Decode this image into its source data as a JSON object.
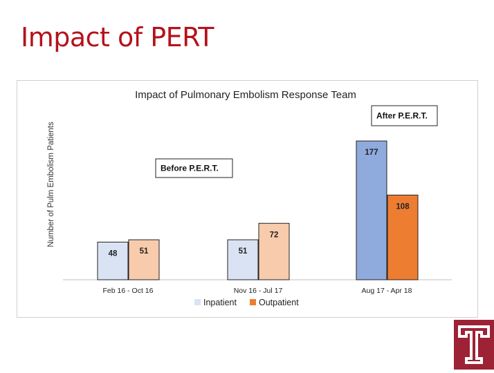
{
  "slide": {
    "title": "Impact of PERT"
  },
  "colors": {
    "title_red": "#b5121b",
    "logo_red": "#9d2235"
  },
  "chart_data": {
    "type": "bar",
    "title": "Impact of Pulmonary Embolism Response Team",
    "xlabel": "",
    "ylabel": "Number of Pulm Embolism Patients",
    "categories": [
      "Feb 16 - Oct 16",
      "Nov 16 - Jul 17",
      "Aug 17 - Apr 18"
    ],
    "series": [
      {
        "name": "Inpatient",
        "values": [
          48,
          51,
          177
        ],
        "colors": [
          "#dae3f3",
          "#dae3f3",
          "#8faadc"
        ]
      },
      {
        "name": "Outpatient",
        "values": [
          51,
          72,
          108
        ],
        "colors": [
          "#f8cbad",
          "#f8cbad",
          "#ed7d31"
        ]
      }
    ],
    "legend": {
      "position": "bottom",
      "entries": [
        "Inpatient",
        "Outpatient"
      ],
      "swatch_colors": [
        "#dae3f3",
        "#ed7d31"
      ]
    },
    "annotations": [
      {
        "text": "Before  P.E.R.T."
      },
      {
        "text": "After P.E.R.T."
      }
    ],
    "ylim": [
      0,
      185
    ],
    "grid": false
  }
}
